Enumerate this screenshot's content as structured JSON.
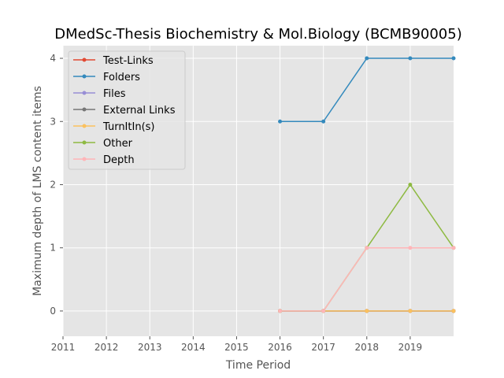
{
  "chart_data": {
    "type": "line",
    "title": "DMedSc-Thesis Biochemistry & Mol.Biology (BCMB90005)",
    "xlabel": "Time Period",
    "ylabel": "Maximum depth of LMS content items",
    "xlim": [
      2011,
      2020
    ],
    "ylim": [
      -0.4,
      4.2
    ],
    "x_ticks": [
      "2011",
      "2012",
      "2013",
      "2014",
      "2015",
      "2016",
      "2017",
      "2018",
      "2019"
    ],
    "y_ticks": [
      "0",
      "1",
      "2",
      "3",
      "4"
    ],
    "grid": true,
    "legend_position": "upper-left",
    "x": [
      2016,
      2017,
      2018,
      2019,
      2020
    ],
    "series": [
      {
        "name": "Test-Links",
        "color": "#E24A33",
        "values": [
          0,
          0,
          0,
          0,
          0
        ]
      },
      {
        "name": "Folders",
        "color": "#348ABD",
        "values": [
          3,
          3,
          4,
          4,
          4
        ]
      },
      {
        "name": "Files",
        "color": "#988ED5",
        "values": [
          0,
          0,
          0,
          0,
          0
        ]
      },
      {
        "name": "External Links",
        "color": "#777777",
        "values": [
          0,
          0,
          0,
          0,
          0
        ]
      },
      {
        "name": "TurnItIn(s)",
        "color": "#FBC15E",
        "values": [
          0,
          0,
          0,
          0,
          0
        ]
      },
      {
        "name": "Other",
        "color": "#8EBA42",
        "values": [
          0,
          0,
          1,
          2,
          1
        ]
      },
      {
        "name": "Depth",
        "color": "#FFB5B8",
        "values": [
          0,
          0,
          1,
          1,
          1
        ]
      }
    ]
  }
}
